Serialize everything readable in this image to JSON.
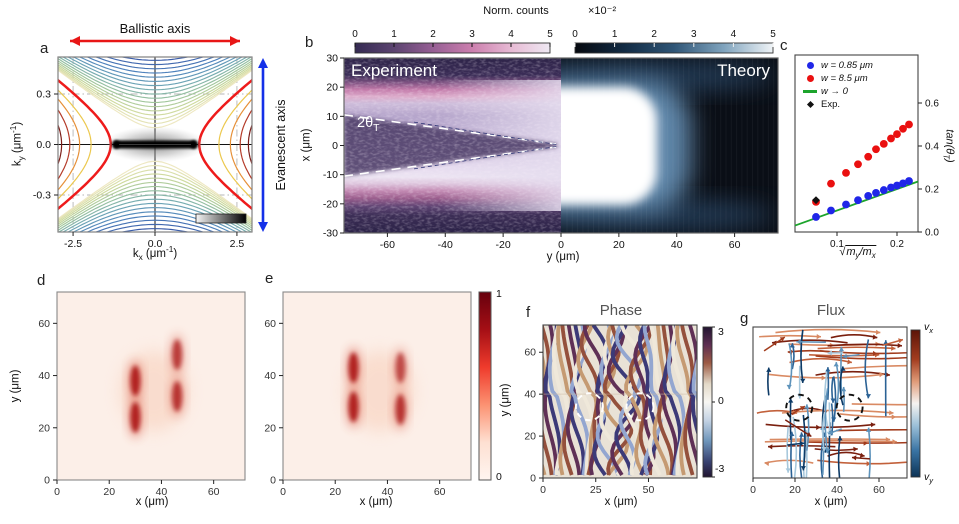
{
  "panel_letters": {
    "a": "a",
    "b": "b",
    "c": "c",
    "d": "d",
    "e": "e",
    "f": "f",
    "g": "g"
  },
  "annotations": {
    "ballistic": "Ballistic axis",
    "evanescent": "Evanescent axis",
    "norm_counts": "Norm. counts",
    "times_ten": "×10⁻²",
    "experiment": "Experiment",
    "theory": "Theory",
    "theta_base": "2θ",
    "theta_sub": "T",
    "phase": "Phase",
    "flux": "Flux"
  },
  "chart_data": [
    {
      "id": "a",
      "type": "contour",
      "xlabel": "k_{x} (μm^{-1})",
      "ylabel": "k_{y} (μm^{-1})",
      "xlim": [
        -2.96,
        2.96
      ],
      "ylim": [
        -0.52,
        0.52
      ],
      "xticks": [
        -2.5,
        0.0,
        2.5
      ],
      "xtick_labels": [
        "-2.5",
        "0.0",
        "2.5"
      ],
      "yticks": [
        0.3,
        0.0,
        -0.3
      ],
      "ytick_labels": [
        "0.3",
        "0.0",
        "-0.3"
      ],
      "grid_x": [
        -2.5,
        2.5
      ],
      "grid_y": [
        0.3,
        -0.3
      ],
      "axes_annotations": {
        "top": "Ballistic axis",
        "right": "Evanescent axis"
      },
      "separatrix": {
        "vertex_kx": 1.35,
        "color": "#ee1b1b"
      },
      "vertical_contours": {
        "ky0_min": 0.1,
        "ky0_step": 0.025,
        "count": 17,
        "colors": [
          "#eee8c2",
          "#cdd99c",
          "#9cc49c",
          "#6fa8b4",
          "#4f83bd",
          "#3a5ca8"
        ]
      },
      "horizontal_contours": {
        "vertices": [
          1.95,
          2.3,
          2.6,
          2.85,
          3.05
        ],
        "colors": [
          "#ecc84e",
          "#e69038",
          "#b43a28",
          "#7c1d18",
          "#58120f"
        ]
      },
      "data_note": "dark measured intensity band along k_y = 0 between k_x ≈ ±1.25, grayscale inset colorbar bottom-right"
    },
    {
      "id": "b",
      "type": "heatmap",
      "xlabel": "y (μm)",
      "ylabel": "x (μm)",
      "xlim": [
        -75,
        75
      ],
      "ylim": [
        -30,
        30
      ],
      "xticks": [
        -60,
        -40,
        -20,
        0,
        20,
        40,
        60
      ],
      "yticks": [
        30,
        20,
        10,
        0,
        -10,
        -20,
        -30
      ],
      "halves": [
        {
          "name": "Experiment",
          "colorbar_title": "Norm. counts",
          "colorbar_ticks": [
            "0",
            "1",
            "2",
            "3",
            "4",
            "5"
          ],
          "colormap": [
            "#342a52",
            "#5c4470",
            "#965f94",
            "#cc7fae",
            "#e7bad4",
            "#efe9f3"
          ]
        },
        {
          "name": "Theory",
          "colorbar_title": "×10⁻²",
          "colorbar_ticks": [
            "0",
            "1",
            "2",
            "3",
            "4",
            "5"
          ],
          "colormap": [
            "#06090f",
            "#122b44",
            "#2f5576",
            "#7fa3bd",
            "#f0f4f7"
          ]
        }
      ],
      "annotation": "2θ_{T}",
      "wedge": {
        "apex_y": 0,
        "half_width_x_at_left": 10
      },
      "data_note": "dark wedge of suppressed counts opening leftward, bright bands at x ≈ ±15, theory shows bright lobe 0<y<30"
    },
    {
      "id": "c",
      "type": "scatter",
      "xlabel_sqrt": "m_{y}/m_{x}",
      "ylabel": "tan(θ_{T})",
      "xlim": [
        0.03,
        0.235
      ],
      "ylim": [
        0,
        0.82
      ],
      "xticks": [
        0.1,
        0.2
      ],
      "xtick_labels": [
        "0.1",
        "0.2"
      ],
      "yticks": [
        0.0,
        0.2,
        0.4,
        0.6
      ],
      "ytick_labels": [
        "0.0",
        "0.2",
        "0.4",
        "0.6"
      ],
      "legend": [
        {
          "label": "w = 0.85 μm",
          "marker": "circle",
          "color": "#2026e8"
        },
        {
          "label": "w = 8.5 μm",
          "marker": "circle",
          "color": "#ea1010"
        },
        {
          "label": "w → 0",
          "marker": "line",
          "color": "#1ca42c"
        },
        {
          "label": "Exp.",
          "marker": "diamond",
          "color": "#111111"
        }
      ],
      "series": [
        {
          "name": "w = 0.85 μm",
          "color": "#2026e8",
          "x": [
            0.065,
            0.09,
            0.115,
            0.135,
            0.152,
            0.165,
            0.178,
            0.19,
            0.2,
            0.21,
            0.22
          ],
          "y": [
            0.07,
            0.1,
            0.128,
            0.148,
            0.168,
            0.182,
            0.195,
            0.207,
            0.216,
            0.226,
            0.237
          ]
        },
        {
          "name": "w = 8.5 μm",
          "color": "#ea1010",
          "x": [
            0.065,
            0.09,
            0.115,
            0.135,
            0.152,
            0.165,
            0.178,
            0.19,
            0.2,
            0.21,
            0.22
          ],
          "y": [
            0.14,
            0.225,
            0.275,
            0.315,
            0.35,
            0.385,
            0.41,
            0.435,
            0.455,
            0.48,
            0.5
          ]
        },
        {
          "name": "w → 0",
          "color": "#1ca42c",
          "line_x": [
            0.03,
            0.235
          ],
          "line_y": [
            0.03,
            0.235
          ]
        },
        {
          "name": "Exp.",
          "color": "#111111",
          "x": [
            0.065
          ],
          "y": [
            0.148
          ]
        }
      ]
    },
    {
      "id": "d",
      "type": "heatmap",
      "colormap": "Reds",
      "xlabel": "x (μm)",
      "ylabel": "y (μm)",
      "xlim": [
        0,
        72
      ],
      "ylim": [
        0,
        72
      ],
      "xticks": [
        0,
        20,
        40,
        60
      ],
      "yticks": [
        0,
        20,
        40,
        60
      ],
      "fringe_columns": [
        26,
        29,
        32,
        35,
        38,
        41,
        44,
        47,
        50
      ],
      "hotspots": [
        [
          30,
          38,
          1.0
        ],
        [
          30,
          24,
          1.0
        ],
        [
          46,
          48,
          0.8
        ],
        [
          46,
          32,
          0.85
        ]
      ],
      "data_note": "vertical interference fringes x≈26–50, y≈6–62"
    },
    {
      "id": "e",
      "type": "heatmap",
      "colormap": "Reds",
      "xlabel": "x (μm)",
      "ylabel": "y (μm)",
      "xlim": [
        0,
        72
      ],
      "ylim": [
        0,
        72
      ],
      "xticks": [
        0,
        20,
        40,
        60
      ],
      "yticks": [
        0,
        20,
        40,
        60
      ],
      "colorbar_ticks": [
        "1",
        "0"
      ],
      "fringe_columns": [
        24,
        27,
        30,
        33,
        36,
        39,
        42,
        45,
        48
      ],
      "hotspots": [
        [
          27,
          43,
          1.0
        ],
        [
          27,
          28,
          1.0
        ],
        [
          45,
          43,
          0.7
        ],
        [
          45,
          27,
          0.85
        ]
      ],
      "data_note": "vertical interference fringes x≈24–50, y≈8–60"
    },
    {
      "id": "f",
      "type": "heatmap",
      "title": "Phase",
      "colormap": "twilight",
      "xlabel": "x (μm)",
      "ylabel": "y (μm)",
      "xlim": [
        0,
        73
      ],
      "ylim": [
        0,
        73
      ],
      "xticks": [
        0,
        25,
        50
      ],
      "yticks": [
        0,
        20,
        40,
        60
      ],
      "colorbar_ticks": [
        "3",
        "0",
        "-3"
      ],
      "vortex_circles": [
        [
          22,
          34
        ],
        [
          46,
          34
        ]
      ],
      "data_note": "wavy phase stripes with branch-cut seam at y≈40, two phase singularities circled"
    },
    {
      "id": "g",
      "type": "streamplot",
      "title": "Flux",
      "xlabel": "x (μm)",
      "xlim": [
        0,
        73
      ],
      "ylim": [
        0,
        73
      ],
      "xticks": [
        0,
        20,
        40,
        60
      ],
      "colorbar_label_top": "v_{x}",
      "colorbar_label_bottom": "v_{y}",
      "vortex_circles": [
        [
          22,
          34
        ],
        [
          46,
          34
        ]
      ],
      "data_note": "red/brown horizontal streamlines and blue vertical streamlines, two vortices circled"
    }
  ]
}
